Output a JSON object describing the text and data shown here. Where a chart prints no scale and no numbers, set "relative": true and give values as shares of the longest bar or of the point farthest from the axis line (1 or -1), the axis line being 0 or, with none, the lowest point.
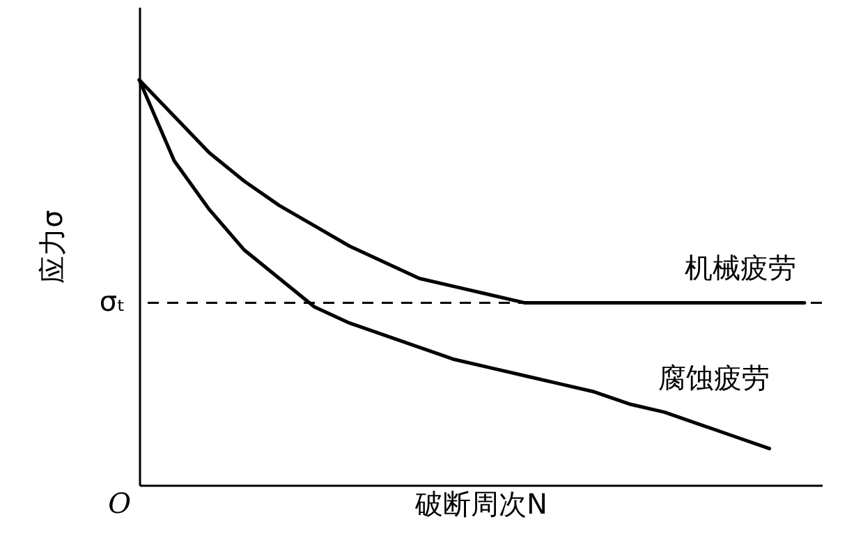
{
  "chart_data": {
    "type": "line",
    "relative": true,
    "xlabel": "破断周次N",
    "ylabel": "应力σ",
    "legend": false,
    "marker": "none",
    "line_style": "solid",
    "categories": [
      null,
      null,
      null,
      null,
      null,
      null,
      null,
      null,
      null,
      null,
      null,
      null,
      null,
      null,
      null,
      null,
      null,
      null,
      null,
      null
    ],
    "series": [
      {
        "name": "机械疲劳",
        "color": "#000000",
        "values": [
          1.0,
          0.91,
          0.82,
          0.75,
          0.69,
          0.64,
          0.59,
          0.55,
          0.51,
          0.49,
          0.47,
          0.45,
          0.45,
          0.45,
          0.45,
          0.45,
          0.45,
          0.45,
          0.45,
          0.45
        ]
      },
      {
        "name": "腐蚀疲劳",
        "color": "#000000",
        "values": [
          1.0,
          0.8,
          0.68,
          0.58,
          0.51,
          0.44,
          0.4,
          0.37,
          0.34,
          0.31,
          0.29,
          0.27,
          0.25,
          0.23,
          0.2,
          0.18,
          0.15,
          0.12,
          0.09,
          null
        ]
      }
    ],
    "ref_lines": [
      {
        "axis": "y",
        "value": 0.45,
        "label": "σₜ",
        "line_style": "dashed"
      }
    ],
    "annotations": [
      "O"
    ]
  }
}
